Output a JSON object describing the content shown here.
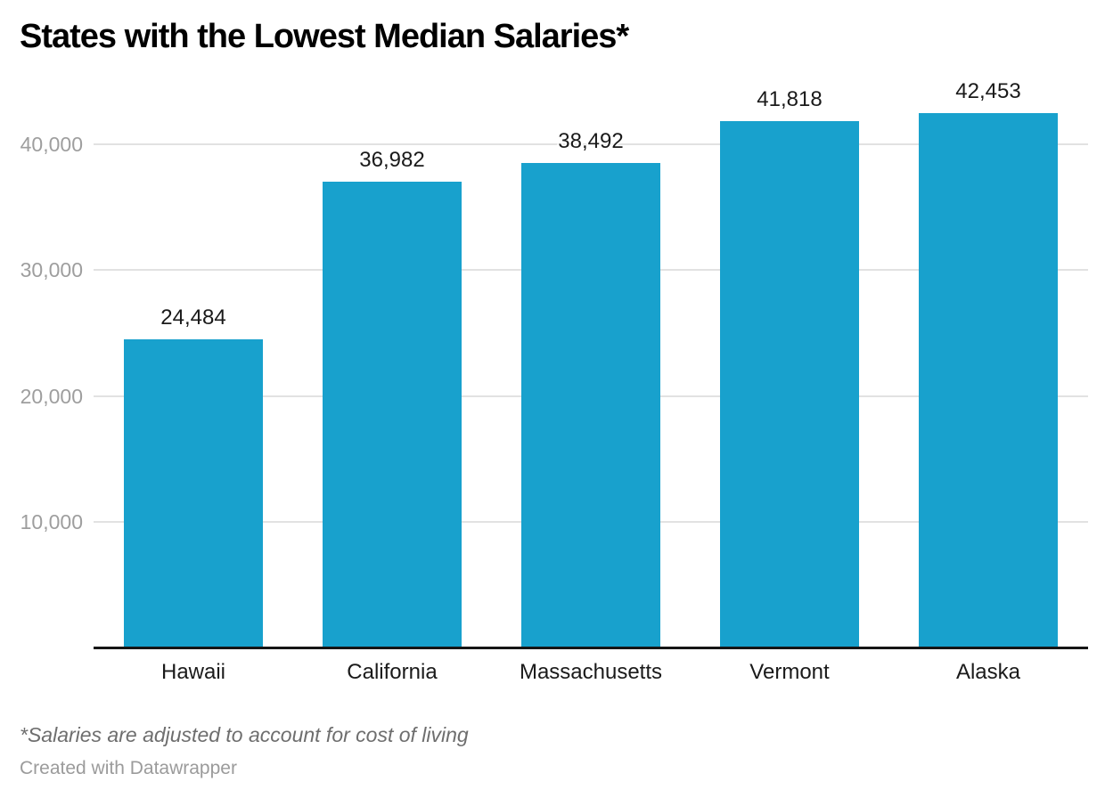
{
  "title": "States with the Lowest Median Salaries*",
  "footnote": "*Salaries are adjusted to account for cost of living",
  "attribution": "Created with Datawrapper",
  "colors": {
    "bar": "#18a1cd",
    "gridline": "#e2e2e2",
    "tick_label": "#9e9e9e",
    "axis_line": "#151515",
    "value_label": "#1a1a1a",
    "category_label": "#1a1a1a",
    "title": "#000000",
    "footnote": "#6e6e6e",
    "attribution": "#9b9b9b",
    "background": "#ffffff"
  },
  "chart_data": {
    "type": "bar",
    "title": "States with the Lowest Median Salaries*",
    "categories": [
      "Hawaii",
      "California",
      "Massachusetts",
      "Vermont",
      "Alaska"
    ],
    "values": [
      24484,
      36982,
      38492,
      41818,
      42453
    ],
    "value_labels": [
      "24,484",
      "36,982",
      "38,492",
      "41,818",
      "42,453"
    ],
    "xlabel": "",
    "ylabel": "",
    "ylim": [
      0,
      44000
    ],
    "yticks": [
      10000,
      20000,
      30000,
      40000
    ],
    "ytick_labels": [
      "10,000",
      "20,000",
      "30,000",
      "40,000"
    ],
    "grid": "horizontal-only",
    "legend": "none",
    "footnote": "*Salaries are adjusted to account for cost of living",
    "attribution": "Created with Datawrapper"
  }
}
